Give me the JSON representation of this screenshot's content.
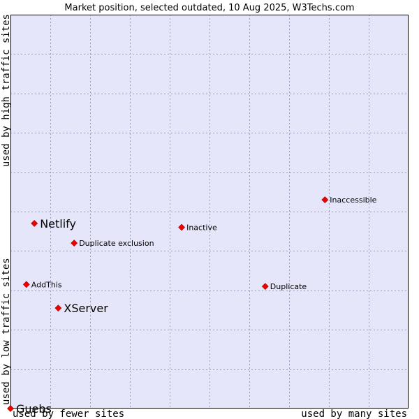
{
  "chart_data": {
    "type": "scatter",
    "title": "Market position, selected outdated, 10 Aug 2025, W3Techs.com",
    "xlabel_left": "used by fewer sites",
    "xlabel_right": "used by many sites",
    "ylabel_bottom": "used by low traffic sites",
    "ylabel_top": "used by high traffic sites",
    "xlim": [
      0,
      10
    ],
    "ylim": [
      0,
      10
    ],
    "grid": true,
    "colors": {
      "plot_background": "#e6e6fa",
      "grid": "#9999bb",
      "border": "#000000",
      "marker": "#ee0000"
    },
    "points": [
      {
        "label": "Netlify",
        "x": 0.6,
        "y": 4.7,
        "emphasis": true
      },
      {
        "label": "XServer",
        "x": 1.2,
        "y": 2.55,
        "emphasis": true
      },
      {
        "label": "Guebs",
        "x": 0.0,
        "y": 0.0,
        "emphasis": true
      },
      {
        "label": "Inaccessible",
        "x": 7.9,
        "y": 5.3,
        "emphasis": false
      },
      {
        "label": "Inactive",
        "x": 4.3,
        "y": 4.6,
        "emphasis": false
      },
      {
        "label": "Duplicate exclusion",
        "x": 1.6,
        "y": 4.2,
        "emphasis": false
      },
      {
        "label": "AddThis",
        "x": 0.4,
        "y": 3.15,
        "emphasis": false
      },
      {
        "label": "Duplicate",
        "x": 6.4,
        "y": 3.1,
        "emphasis": false
      }
    ]
  }
}
